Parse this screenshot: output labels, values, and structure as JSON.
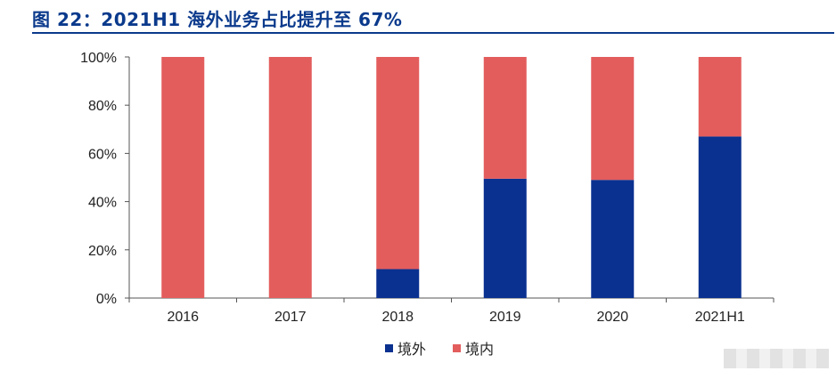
{
  "title": "图 22：2021H1 海外业务占比提升至 67%",
  "colors": {
    "overseas": "#0a3190",
    "domestic": "#e35d5d",
    "title": "#0b3a8c"
  },
  "chart_data": {
    "type": "bar",
    "stacked": true,
    "categories": [
      "2016",
      "2017",
      "2018",
      "2019",
      "2020",
      "2021H1"
    ],
    "series": [
      {
        "name": "境外",
        "values": [
          0,
          0,
          12,
          49.5,
          49,
          67
        ]
      },
      {
        "name": "境内",
        "values": [
          100,
          100,
          88,
          50.5,
          51,
          33
        ]
      }
    ],
    "ylim": [
      0,
      100
    ],
    "yticks": [
      "0%",
      "20%",
      "40%",
      "60%",
      "80%",
      "100%"
    ],
    "legend": "bottom",
    "grid": false
  }
}
